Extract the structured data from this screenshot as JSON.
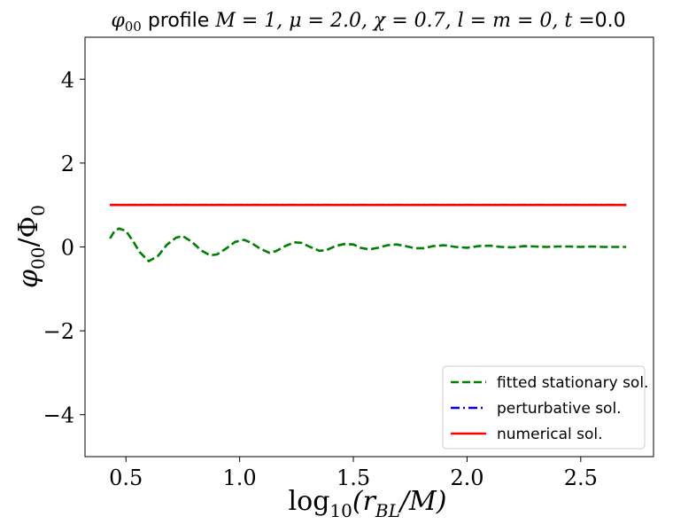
{
  "chart_data": {
    "type": "line",
    "title": {
      "phi_symbol": "φ",
      "phi_sub": "00",
      "word": " profile ",
      "params": "M = 1, μ = 2.0, χ = 0.7, l = m = 0, t =",
      "time_value": "0.0"
    },
    "xlabel": {
      "prefix": "log",
      "base": "10",
      "argument": "(r",
      "arg_sub": "BL",
      "suffix": "/M)"
    },
    "ylabel": {
      "phi": "φ",
      "phi_sub": "00",
      "slash": "/Φ",
      "den_sub": "0"
    },
    "xlim": [
      0.32,
      2.82
    ],
    "ylim": [
      -5,
      5
    ],
    "xticks": [
      0.5,
      1.0,
      1.5,
      2.0,
      2.5
    ],
    "xtick_labels": [
      "0.5",
      "1.0",
      "1.5",
      "2.0",
      "2.5"
    ],
    "yticks": [
      -4,
      -2,
      0,
      2,
      4
    ],
    "ytick_labels": [
      "−4",
      "−2",
      "0",
      "2",
      "4"
    ],
    "grid": false,
    "legend_position": "bottom-right",
    "series": [
      {
        "name": "fitted stationary sol.",
        "color": "#008000",
        "style": "dashed",
        "x": [
          0.43,
          0.45,
          0.47,
          0.5,
          0.53,
          0.56,
          0.6,
          0.64,
          0.68,
          0.72,
          0.75,
          0.79,
          0.83,
          0.87,
          0.9,
          0.94,
          0.98,
          1.02,
          1.05,
          1.09,
          1.13,
          1.16,
          1.2,
          1.24,
          1.27,
          1.31,
          1.35,
          1.38,
          1.42,
          1.46,
          1.5,
          1.53,
          1.57,
          1.61,
          1.65,
          1.69,
          1.73,
          1.77,
          1.81,
          1.85,
          1.9,
          1.95,
          2.0,
          2.05,
          2.1,
          2.15,
          2.2,
          2.25,
          2.3,
          2.35,
          2.4,
          2.45,
          2.5,
          2.55,
          2.6,
          2.65,
          2.7
        ],
        "y": [
          0.2,
          0.38,
          0.44,
          0.38,
          0.15,
          -0.12,
          -0.34,
          -0.22,
          0.05,
          0.22,
          0.26,
          0.12,
          -0.08,
          -0.2,
          -0.18,
          -0.04,
          0.12,
          0.17,
          0.1,
          -0.04,
          -0.14,
          -0.1,
          0.02,
          0.11,
          0.1,
          0.0,
          -0.09,
          -0.08,
          0.02,
          0.07,
          0.06,
          -0.02,
          -0.06,
          -0.02,
          0.04,
          0.06,
          0.02,
          -0.03,
          -0.03,
          0.02,
          0.04,
          0.0,
          -0.02,
          0.02,
          0.03,
          0.0,
          -0.01,
          0.02,
          0.01,
          0.0,
          0.01,
          0.01,
          0.0,
          0.01,
          0.0,
          0.0,
          0.0
        ]
      },
      {
        "name": "perturbative sol.",
        "color": "#0000ff",
        "style": "dashdot",
        "x": [
          0.43,
          2.7
        ],
        "y": [
          1.0,
          1.0
        ]
      },
      {
        "name": "numerical sol.",
        "color": "#ff0000",
        "style": "solid",
        "x": [
          0.43,
          2.7
        ],
        "y": [
          1.0,
          1.0
        ]
      }
    ]
  }
}
